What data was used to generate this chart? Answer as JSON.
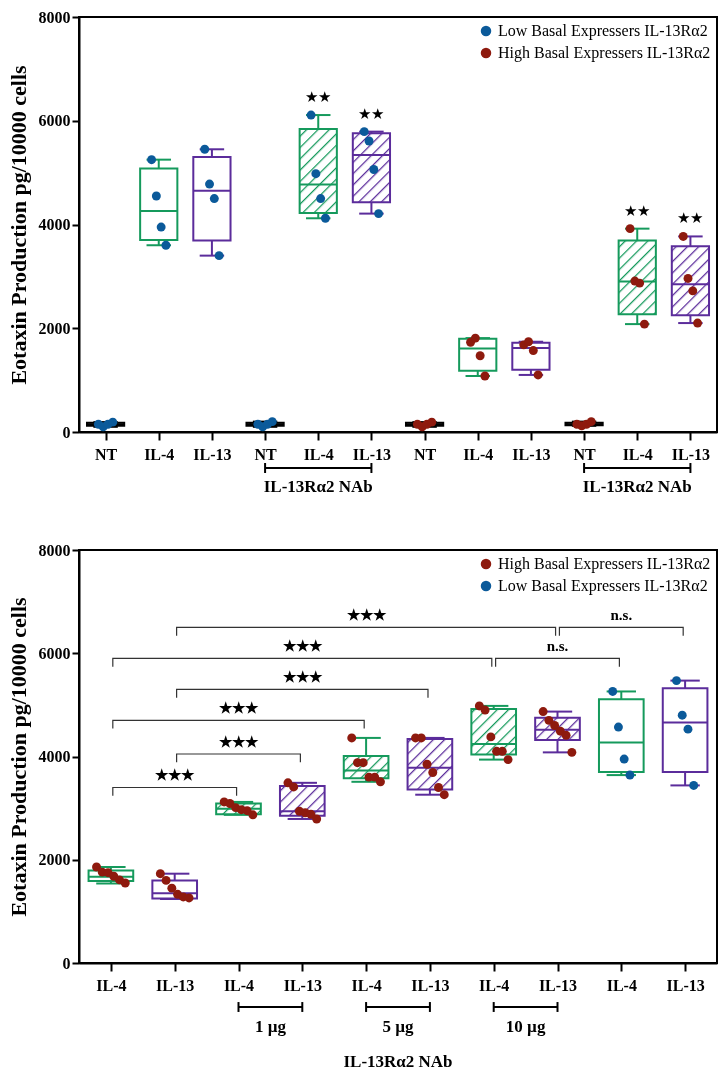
{
  "chart_data": [
    {
      "type": "box",
      "ylabel": "Eotaxin Production pg/10000 cells",
      "categories": [
        "NT",
        "IL-4",
        "IL-13",
        "NT",
        "IL-4",
        "IL-13",
        "NT",
        "IL-4",
        "IL-13",
        "NT",
        "IL-4",
        "IL-13"
      ],
      "ylim": [
        0,
        8000
      ],
      "yticks": [
        0,
        2000,
        4000,
        6000,
        8000
      ],
      "legend": "top right",
      "marker": "circle",
      "colors": [
        "#000000",
        "#159a5c",
        "#5b2c9b",
        "#000000",
        "#159a5c",
        "#5b2c9b",
        "#000000",
        "#159a5c",
        "#5b2c9b",
        "#000000",
        "#159a5c",
        "#5b2c9b"
      ],
      "boxes": [
        {
          "low": 100,
          "q1": 120,
          "median": 150,
          "q3": 180,
          "high": 190
        },
        {
          "low": 3600,
          "q1": 3700,
          "median": 4260,
          "q3": 5080,
          "high": 5250
        },
        {
          "low": 3400,
          "q1": 3690,
          "median": 4650,
          "q3": 5300,
          "high": 5450
        },
        {
          "low": 100,
          "q1": 120,
          "median": 150,
          "q3": 180,
          "high": 200
        },
        {
          "low": 4120,
          "q1": 4220,
          "median": 4770,
          "q3": 5840,
          "high": 6110
        },
        {
          "low": 4210,
          "q1": 4430,
          "median": 5340,
          "q3": 5760,
          "high": 5790
        },
        {
          "low": 100,
          "q1": 120,
          "median": 150,
          "q3": 180,
          "high": 190
        },
        {
          "low": 1080,
          "q1": 1180,
          "median": 1610,
          "q3": 1800,
          "high": 1810
        },
        {
          "low": 1100,
          "q1": 1200,
          "median": 1620,
          "q3": 1720,
          "high": 1740
        },
        {
          "low": 120,
          "q1": 130,
          "median": 150,
          "q3": 180,
          "high": 200
        },
        {
          "low": 2080,
          "q1": 2270,
          "median": 2900,
          "q3": 3690,
          "high": 3920
        },
        {
          "low": 2100,
          "q1": 2250,
          "median": 2850,
          "q3": 3580,
          "high": 3770
        }
      ],
      "value_labels": [
        null,
        null,
        null,
        null,
        "★★",
        "★★",
        null,
        null,
        null,
        null,
        "★★",
        "★★"
      ],
      "series": [
        {
          "type": "scatter",
          "name": "Low Basal Expressers IL-13Rα2",
          "color": "#0b5a9a",
          "values": [
            150,
            5250,
            5450,
            150,
            6110,
            5790,
            null,
            null,
            null,
            null,
            null,
            null
          ]
        },
        {
          "type": "scatter",
          "color": "#0b5a9a",
          "values": [
            100,
            4550,
            4780,
            100,
            4980,
            5610,
            null,
            null,
            null,
            null,
            null,
            null
          ]
        },
        {
          "type": "scatter",
          "color": "#0b5a9a",
          "values": [
            150,
            3950,
            4500,
            150,
            4500,
            5060,
            null,
            null,
            null,
            null,
            null,
            null
          ]
        },
        {
          "type": "scatter",
          "color": "#0b5a9a",
          "values": [
            190,
            3600,
            3400,
            200,
            4120,
            4210,
            null,
            null,
            null,
            null,
            null,
            null
          ]
        },
        {
          "type": "scatter",
          "name": "High Basal Expressers IL-13Rα2",
          "color": "#8e1a0e",
          "values": [
            null,
            null,
            null,
            null,
            null,
            null,
            150,
            1730,
            1680,
            150,
            3920,
            3770
          ]
        },
        {
          "type": "scatter",
          "color": "#8e1a0e",
          "values": [
            null,
            null,
            null,
            null,
            null,
            null,
            100,
            1810,
            1740,
            120,
            2910,
            2960
          ]
        },
        {
          "type": "scatter",
          "color": "#8e1a0e",
          "values": [
            null,
            null,
            null,
            null,
            null,
            null,
            150,
            1470,
            1570,
            150,
            2870,
            2720
          ]
        },
        {
          "type": "scatter",
          "color": "#8e1a0e",
          "values": [
            null,
            null,
            null,
            null,
            null,
            null,
            190,
            1080,
            1100,
            200,
            2080,
            2100
          ]
        }
      ],
      "annotations": [
        "IL-13Rα2 NAb",
        "IL-13Rα2 NAb"
      ]
    },
    {
      "type": "box",
      "ylabel": "Eotaxin Production pg/10000 cells",
      "categories": [
        "IL-4",
        "IL-13",
        "IL-4",
        "IL-13",
        "IL-4",
        "IL-13",
        "IL-4",
        "IL-13",
        "IL-4",
        "IL-13"
      ],
      "ylim": [
        0,
        8000
      ],
      "yticks": [
        0,
        2000,
        4000,
        6000,
        8000
      ],
      "legend": "top right",
      "marker": "circle",
      "colors": [
        "#159a5c",
        "#5b2c9b",
        "#159a5c",
        "#5b2c9b",
        "#159a5c",
        "#5b2c9b",
        "#159a5c",
        "#5b2c9b",
        "#159a5c",
        "#5b2c9b"
      ],
      "boxes": [
        {
          "low": 1540,
          "q1": 1590,
          "median": 1670,
          "q3": 1790,
          "high": 1860
        },
        {
          "low": 1240,
          "q1": 1250,
          "median": 1350,
          "q3": 1600,
          "high": 1730
        },
        {
          "low": 2870,
          "q1": 2880,
          "median": 2990,
          "q3": 3090,
          "high": 3120
        },
        {
          "low": 2790,
          "q1": 2850,
          "median": 2940,
          "q3": 3430,
          "high": 3490
        },
        {
          "low": 3510,
          "q1": 3580,
          "median": 3730,
          "q3": 4010,
          "high": 4360
        },
        {
          "low": 3260,
          "q1": 3360,
          "median": 3780,
          "q3": 4340,
          "high": 4360
        },
        {
          "low": 3940,
          "q1": 4040,
          "median": 4240,
          "q3": 4920,
          "high": 4980
        },
        {
          "low": 4080,
          "q1": 4320,
          "median": 4520,
          "q3": 4750,
          "high": 4870
        },
        {
          "low": 3640,
          "q1": 3700,
          "median": 4270,
          "q3": 5110,
          "high": 5260
        },
        {
          "low": 3440,
          "q1": 3700,
          "median": 4660,
          "q3": 5320,
          "high": 5470
        }
      ],
      "series": [
        {
          "type": "scatter",
          "name": "High Basal Expressers IL-13Rα2",
          "color": "#8e1a0e",
          "values": [
            1860,
            1730,
            3120,
            3490,
            4360,
            4360,
            4980,
            4870,
            null,
            null
          ]
        },
        {
          "type": "scatter",
          "color": "#8e1a0e",
          "values": [
            1760,
            1600,
            3090,
            3410,
            3880,
            4360,
            4900,
            4700,
            null,
            null
          ]
        },
        {
          "type": "scatter",
          "color": "#8e1a0e",
          "values": [
            1750,
            1450,
            3010,
            2940,
            3880,
            3850,
            4380,
            4600,
            null,
            null
          ]
        },
        {
          "type": "scatter",
          "color": "#8e1a0e",
          "values": [
            1680,
            1330,
            2970,
            2910,
            3600,
            3690,
            4100,
            4490,
            null,
            null
          ]
        },
        {
          "type": "scatter",
          "color": "#8e1a0e",
          "values": [
            1610,
            1280,
            2950,
            2880,
            3600,
            3400,
            4100,
            4410,
            null,
            null
          ]
        },
        {
          "type": "scatter",
          "color": "#8e1a0e",
          "values": [
            1550,
            1260,
            2870,
            2790,
            3510,
            3260,
            3940,
            4080,
            null,
            null
          ]
        },
        {
          "type": "scatter",
          "name": "Low Basal Expressers IL-13Rα2",
          "color": "#0b5a9a",
          "values": [
            null,
            null,
            null,
            null,
            null,
            null,
            null,
            null,
            5260,
            5470
          ]
        },
        {
          "type": "scatter",
          "color": "#0b5a9a",
          "values": [
            null,
            null,
            null,
            null,
            null,
            null,
            null,
            null,
            4570,
            4800
          ]
        },
        {
          "type": "scatter",
          "color": "#0b5a9a",
          "values": [
            null,
            null,
            null,
            null,
            null,
            null,
            null,
            null,
            3950,
            4530
          ]
        },
        {
          "type": "scatter",
          "color": "#0b5a9a",
          "values": [
            null,
            null,
            null,
            null,
            null,
            null,
            null,
            null,
            3640,
            3440
          ]
        }
      ],
      "annotations": [
        "★★★",
        "n.s.",
        "★★★",
        "n.s.",
        "★★★",
        "★★★",
        "★★★",
        "★★★",
        "1 µg",
        "5 µg",
        "10 µg",
        "IL-13Rα2 NAb"
      ]
    }
  ]
}
